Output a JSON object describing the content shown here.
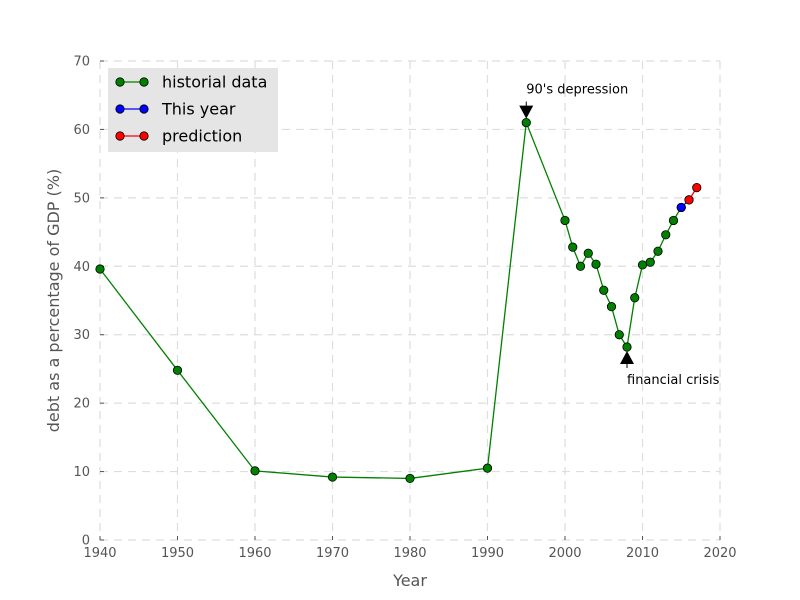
{
  "chart_data": {
    "type": "line",
    "xlabel": "Year",
    "ylabel": "debt as a percentage of GDP (%)",
    "xlim": [
      1940,
      2020
    ],
    "ylim": [
      0,
      70
    ],
    "xticks": [
      1940,
      1950,
      1960,
      1970,
      1980,
      1990,
      2000,
      2010,
      2020
    ],
    "yticks": [
      0,
      10,
      20,
      30,
      40,
      50,
      60,
      70
    ],
    "grid": true,
    "legend_position": "top-left",
    "series": [
      {
        "name": "historial data",
        "color": "#008000",
        "x": [
          1940,
          1950,
          1960,
          1970,
          1980,
          1990,
          1995,
          2000,
          2001,
          2002,
          2003,
          2004,
          2005,
          2006,
          2007,
          2008,
          2009,
          2010,
          2011,
          2012,
          2013,
          2014,
          2015
        ],
        "y": [
          39.6,
          24.8,
          10.1,
          9.2,
          9.0,
          10.5,
          61.0,
          46.7,
          42.8,
          40.0,
          41.9,
          40.3,
          36.5,
          34.1,
          30.0,
          28.2,
          35.4,
          40.2,
          40.6,
          42.2,
          44.6,
          46.7,
          48.6
        ]
      },
      {
        "name": "This year",
        "color": "#0000ff",
        "x": [
          2015,
          2016
        ],
        "y": [
          48.6,
          49.7
        ]
      },
      {
        "name": "prediction",
        "color": "#ff0000",
        "x": [
          2016,
          2017
        ],
        "y": [
          49.7,
          51.5
        ]
      }
    ],
    "annotations": [
      {
        "text": "90's depression",
        "point": [
          1995,
          61.0
        ],
        "direction": "down"
      },
      {
        "text": "financial crisis",
        "point": [
          2008,
          28.2
        ],
        "direction": "up"
      }
    ]
  }
}
